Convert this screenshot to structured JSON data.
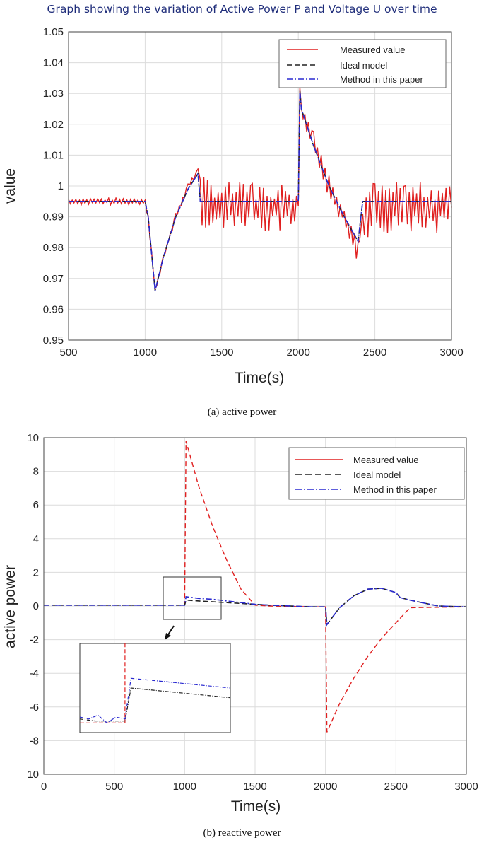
{
  "page": {
    "title": "Graph showing the variation of Active Power P and Voltage U over time",
    "caption_a": "(a) active power",
    "caption_b": "(b) reactive power"
  },
  "colors": {
    "measured": "#e02020",
    "ideal": "#222222",
    "method": "#2a2ad0",
    "grid": "#dcdcdc",
    "title": "#1f2d7a"
  },
  "chart_data": [
    {
      "type": "line",
      "title": "Graph showing the variation of Active Power P and Voltage U over time",
      "xlabel": "Time(s)",
      "ylabel": "value",
      "xlim": [
        500,
        3000
      ],
      "ylim": [
        0.95,
        1.05
      ],
      "xticks": [
        "500",
        "1000",
        "1500",
        "2000",
        "2500",
        "3000"
      ],
      "yticks": [
        "0.95",
        "0.96",
        "0.97",
        "0.98",
        "0.99",
        "1",
        "1.01",
        "1.02",
        "1.03",
        "1.04",
        "1.05"
      ],
      "grid": true,
      "legend_position": "top-right",
      "series": [
        {
          "name": "Measured value",
          "style": "solid",
          "x": [
            500,
            1000,
            1020,
            1065,
            1120,
            1200,
            1280,
            1345,
            1360,
            1500,
            1700,
            2000,
            2010,
            2020,
            2100,
            2200,
            2300,
            2390,
            2420,
            2500,
            2700,
            3000
          ],
          "y": [
            0.995,
            0.995,
            0.99,
            0.966,
            0.977,
            0.99,
            1.0,
            1.005,
            0.995,
            0.993,
            0.993,
            0.993,
            1.031,
            1.025,
            1.015,
            1.0,
            0.99,
            0.979,
            0.99,
            0.993,
            0.993,
            0.993
          ]
        },
        {
          "name": "Ideal model",
          "style": "dashed",
          "x": [
            500,
            1000,
            1020,
            1065,
            1120,
            1200,
            1280,
            1345,
            1360,
            1500,
            1700,
            2000,
            2010,
            2020,
            2100,
            2200,
            2300,
            2390,
            2420,
            2500,
            2700,
            3000
          ],
          "y": [
            0.995,
            0.995,
            0.99,
            0.966,
            0.977,
            0.99,
            0.999,
            1.004,
            0.995,
            0.995,
            0.995,
            0.995,
            1.031,
            1.025,
            1.013,
            1.0,
            0.99,
            0.982,
            0.995,
            0.995,
            0.995,
            0.995
          ]
        },
        {
          "name": "Method in this paper",
          "style": "dashdot",
          "x": [
            500,
            1000,
            1020,
            1065,
            1120,
            1200,
            1280,
            1345,
            1360,
            1500,
            1700,
            2000,
            2010,
            2020,
            2100,
            2200,
            2300,
            2390,
            2420,
            2500,
            2700,
            3000
          ],
          "y": [
            0.995,
            0.995,
            0.99,
            0.966,
            0.977,
            0.99,
            0.999,
            1.004,
            0.995,
            0.995,
            0.995,
            0.995,
            1.031,
            1.025,
            1.013,
            1.0,
            0.99,
            0.982,
            0.995,
            0.995,
            0.995,
            0.995
          ]
        }
      ]
    },
    {
      "type": "line",
      "xlabel": "Time(s)",
      "ylabel": "active power",
      "xlim": [
        0,
        3000
      ],
      "ylim": [
        -10,
        10
      ],
      "xticks": [
        "0",
        "500",
        "1000",
        "1500",
        "2000",
        "2500",
        "3000"
      ],
      "yticks": [
        "10",
        "8",
        "6",
        "4",
        "2",
        "0",
        "-2",
        "-4",
        "-6",
        "-8",
        "10"
      ],
      "grid": true,
      "legend_position": "top-right",
      "series": [
        {
          "name": "Measured value",
          "style": "dashed",
          "x": [
            0,
            500,
            990,
            1000,
            1010,
            1100,
            1200,
            1300,
            1400,
            1500,
            1600,
            1900,
            1995,
            2000,
            2010,
            2100,
            2200,
            2300,
            2400,
            2500,
            2600,
            3000
          ],
          "y": [
            0.05,
            0.05,
            0.05,
            0.05,
            9.8,
            7.1,
            4.7,
            2.7,
            1.0,
            0.05,
            0.0,
            -0.05,
            -0.05,
            -0.05,
            -7.5,
            -5.8,
            -4.3,
            -3.0,
            -1.9,
            -1.0,
            -0.1,
            -0.05
          ]
        },
        {
          "name": "Ideal model",
          "style": "dashed",
          "x": [
            0,
            500,
            990,
            1000,
            1010,
            1100,
            1200,
            1300,
            1400,
            1500,
            1600,
            1900,
            1995,
            2000,
            2010,
            2100,
            2200,
            2300,
            2400,
            2500,
            2530,
            2600,
            2800,
            3000
          ],
          "y": [
            0.05,
            0.05,
            0.05,
            0.05,
            0.35,
            0.3,
            0.25,
            0.2,
            0.15,
            0.1,
            0.05,
            -0.05,
            -0.05,
            -0.05,
            -1.1,
            -0.1,
            0.6,
            1.0,
            1.05,
            0.8,
            0.5,
            0.35,
            0.0,
            -0.05
          ]
        },
        {
          "name": "Method in this paper",
          "style": "dashdot",
          "x": [
            0,
            500,
            990,
            1000,
            1010,
            1100,
            1200,
            1300,
            1400,
            1500,
            1600,
            1900,
            1995,
            2000,
            2010,
            2100,
            2200,
            2300,
            2400,
            2500,
            2530,
            2600,
            2800,
            3000
          ],
          "y": [
            0.05,
            0.05,
            0.05,
            0.05,
            0.55,
            0.45,
            0.4,
            0.3,
            0.2,
            0.1,
            0.05,
            -0.05,
            -0.05,
            -0.05,
            -1.1,
            -0.1,
            0.6,
            1.0,
            1.05,
            0.8,
            0.5,
            0.35,
            0.0,
            -0.05
          ]
        }
      ],
      "inset": {
        "xlim": [
          850,
          1350
        ],
        "ylim": [
          -0.8,
          1.5
        ],
        "series": [
          {
            "name": "Measured value",
            "x": [
              850,
              1000,
              1000
            ],
            "y": [
              -0.55,
              -0.55,
              1.5
            ]
          },
          {
            "name": "Ideal model",
            "x": [
              850,
              900,
              950,
              1000,
              1020,
              1350
            ],
            "y": [
              -0.45,
              -0.5,
              -0.5,
              -0.5,
              0.35,
              0.1
            ]
          },
          {
            "name": "Method in this paper",
            "x": [
              850,
              880,
              910,
              940,
              970,
              1000,
              1020,
              1350
            ],
            "y": [
              -0.4,
              -0.45,
              -0.35,
              -0.55,
              -0.4,
              -0.45,
              0.6,
              0.35
            ]
          }
        ]
      }
    }
  ]
}
